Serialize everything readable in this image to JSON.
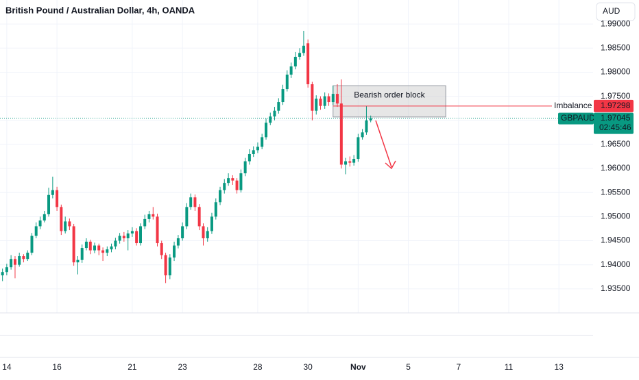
{
  "chart_data": {
    "type": "candlestick",
    "title": "British Pound / Australian Dollar, 4h, OANDA",
    "currency": "AUD",
    "symbol": "GBPAUD",
    "countdown": "02:45:46",
    "up_color": "#089981",
    "down_color": "#f23645",
    "grid": true,
    "xlim": [
      -0.27,
      23.36
    ],
    "xticks": [
      {
        "value": 0,
        "label": "14"
      },
      {
        "value": 2,
        "label": "16"
      },
      {
        "value": 5,
        "label": "21"
      },
      {
        "value": 7,
        "label": "23"
      },
      {
        "value": 10,
        "label": "28"
      },
      {
        "value": 12,
        "label": "30"
      },
      {
        "value": 14,
        "label": "Nov"
      },
      {
        "value": 16,
        "label": "5"
      },
      {
        "value": 18,
        "label": "7"
      },
      {
        "value": 20,
        "label": "11"
      },
      {
        "value": 22,
        "label": "13"
      }
    ],
    "ylim": [
      1.93,
      1.995
    ],
    "yticks": [
      {
        "value": 1.935,
        "label": "1.93500"
      },
      {
        "value": 1.94,
        "label": "1.94000"
      },
      {
        "value": 1.945,
        "label": "1.94500"
      },
      {
        "value": 1.95,
        "label": "1.95000"
      },
      {
        "value": 1.955,
        "label": "1.95500"
      },
      {
        "value": 1.96,
        "label": "1.96000"
      },
      {
        "value": 1.965,
        "label": "1.96500"
      },
      {
        "value": 1.97,
        "label": "1.97000"
      },
      {
        "value": 1.975,
        "label": "1.97500"
      },
      {
        "value": 1.98,
        "label": "1.98000"
      },
      {
        "value": 1.985,
        "label": "1.98500"
      },
      {
        "value": 1.99,
        "label": "1.99000"
      }
    ],
    "x": [
      -0.17,
      0,
      0.17,
      0.33,
      0.5,
      0.67,
      0.83,
      1,
      1.17,
      1.33,
      1.5,
      1.67,
      1.83,
      2,
      2.17,
      2.33,
      2.5,
      2.67,
      2.83,
      3,
      3.17,
      3.33,
      3.5,
      3.67,
      3.83,
      4,
      4.17,
      4.33,
      4.5,
      4.67,
      4.83,
      5,
      5.17,
      5.33,
      5.5,
      5.67,
      5.83,
      6,
      6.17,
      6.33,
      6.5,
      6.67,
      6.83,
      7,
      7.17,
      7.33,
      7.5,
      7.67,
      7.83,
      8,
      8.17,
      8.33,
      8.5,
      8.67,
      8.83,
      9,
      9.17,
      9.33,
      9.5,
      9.67,
      9.83,
      10,
      10.17,
      10.33,
      10.5,
      10.67,
      10.83,
      11,
      11.17,
      11.33,
      11.5,
      11.67,
      11.83,
      12,
      12.17,
      12.33,
      12.5,
      12.67,
      12.83,
      13,
      13.17,
      13.33,
      13.5,
      13.67,
      13.83,
      14,
      14.17,
      14.33,
      14.5
    ],
    "open": [
      1.9378,
      1.9385,
      1.9395,
      1.9412,
      1.94,
      1.9418,
      1.9412,
      1.9425,
      1.946,
      1.948,
      1.9492,
      1.9505,
      1.9545,
      1.9555,
      1.952,
      1.947,
      1.949,
      1.948,
      1.9405,
      1.941,
      1.9435,
      1.9448,
      1.943,
      1.944,
      1.943,
      1.9425,
      1.9432,
      1.9438,
      1.945,
      1.946,
      1.9455,
      1.9465,
      1.947,
      1.9445,
      1.948,
      1.9495,
      1.9505,
      1.95,
      1.9445,
      1.942,
      1.9378,
      1.9415,
      1.944,
      1.9455,
      1.948,
      1.952,
      1.954,
      1.952,
      1.948,
      1.9455,
      1.947,
      1.95,
      1.953,
      1.9555,
      1.957,
      1.958,
      1.9575,
      1.9555,
      1.959,
      1.9615,
      1.963,
      1.9638,
      1.9645,
      1.9665,
      1.9695,
      1.9708,
      1.972,
      1.9738,
      1.9765,
      1.9795,
      1.9812,
      1.9832,
      1.984,
      1.986,
      1.9775,
      1.972,
      1.9745,
      1.973,
      1.975,
      1.9738,
      1.9755,
      1.9735,
      1.9608,
      1.9615,
      1.9612,
      1.962,
      1.9665,
      1.9675,
      1.97
    ],
    "high": [
      1.9392,
      1.9402,
      1.942,
      1.9418,
      1.9425,
      1.9422,
      1.943,
      1.9466,
      1.9488,
      1.95,
      1.9512,
      1.956,
      1.9583,
      1.9562,
      1.9525,
      1.95,
      1.9496,
      1.9485,
      1.9418,
      1.9442,
      1.9455,
      1.9452,
      1.9446,
      1.9444,
      1.9436,
      1.9438,
      1.9444,
      1.9456,
      1.9466,
      1.9468,
      1.9472,
      1.9478,
      1.9476,
      1.9486,
      1.9504,
      1.9512,
      1.952,
      1.9506,
      1.945,
      1.9425,
      1.9422,
      1.9448,
      1.9462,
      1.9488,
      1.9528,
      1.9548,
      1.9546,
      1.9526,
      1.9486,
      1.9478,
      1.9508,
      1.9538,
      1.9562,
      1.9578,
      1.959,
      1.9586,
      1.958,
      1.9598,
      1.9622,
      1.964,
      1.9646,
      1.9654,
      1.9672,
      1.9704,
      1.9716,
      1.9728,
      1.9746,
      1.9774,
      1.9804,
      1.982,
      1.9842,
      1.985,
      1.9886,
      1.9868,
      1.978,
      1.9752,
      1.975,
      1.9758,
      1.9756,
      1.9772,
      1.9775,
      1.9785,
      1.9622,
      1.9625,
      1.9628,
      1.9672,
      1.9682,
      1.973,
      1.971
    ],
    "low": [
      1.9366,
      1.9378,
      1.939,
      1.9372,
      1.9396,
      1.9405,
      1.9408,
      1.942,
      1.9455,
      1.9474,
      1.9488,
      1.95,
      1.9538,
      1.9512,
      1.9462,
      1.9465,
      1.9472,
      1.9398,
      1.938,
      1.9404,
      1.943,
      1.9422,
      1.9424,
      1.942,
      1.9408,
      1.9418,
      1.9426,
      1.9432,
      1.9444,
      1.9448,
      1.943,
      1.9458,
      1.944,
      1.944,
      1.9474,
      1.9488,
      1.9494,
      1.9438,
      1.9412,
      1.9362,
      1.937,
      1.9408,
      1.9434,
      1.945,
      1.9474,
      1.9514,
      1.9512,
      1.9472,
      1.944,
      1.9448,
      1.9464,
      1.9494,
      1.9524,
      1.9548,
      1.9564,
      1.9566,
      1.9548,
      1.955,
      1.9584,
      1.9608,
      1.9624,
      1.9632,
      1.964,
      1.966,
      1.969,
      1.97,
      1.9714,
      1.9732,
      1.976,
      1.9788,
      1.9806,
      1.9826,
      1.9834,
      1.9768,
      1.97,
      1.9712,
      1.9722,
      1.9724,
      1.973,
      1.9732,
      1.9728,
      1.96,
      1.9588,
      1.9604,
      1.9606,
      1.9614,
      1.966,
      1.967,
      1.9696
    ],
    "close": [
      1.9385,
      1.9395,
      1.9412,
      1.94,
      1.9418,
      1.9412,
      1.9425,
      1.946,
      1.948,
      1.9492,
      1.9505,
      1.9545,
      1.9555,
      1.952,
      1.947,
      1.949,
      1.948,
      1.9405,
      1.941,
      1.9435,
      1.9448,
      1.943,
      1.944,
      1.943,
      1.9425,
      1.9432,
      1.9438,
      1.945,
      1.946,
      1.9455,
      1.9465,
      1.947,
      1.9445,
      1.948,
      1.9495,
      1.9505,
      1.95,
      1.9445,
      1.942,
      1.9378,
      1.9415,
      1.944,
      1.9455,
      1.948,
      1.952,
      1.954,
      1.952,
      1.948,
      1.9455,
      1.947,
      1.95,
      1.953,
      1.9555,
      1.957,
      1.958,
      1.9575,
      1.9555,
      1.959,
      1.9615,
      1.963,
      1.9638,
      1.9645,
      1.9665,
      1.9695,
      1.9708,
      1.972,
      1.9738,
      1.9765,
      1.9795,
      1.9812,
      1.9832,
      1.984,
      1.9855,
      1.9775,
      1.972,
      1.9745,
      1.973,
      1.975,
      1.9738,
      1.9755,
      1.9735,
      1.9608,
      1.9615,
      1.9612,
      1.962,
      1.9665,
      1.9675,
      1.97,
      1.97045
    ],
    "imbalance": {
      "label": "Imbalance",
      "value": 1.97298,
      "color": "#f23645"
    },
    "order_block": {
      "label": "Bearish order block",
      "top": 1.9772,
      "bottom": 1.9707,
      "x": [
        13,
        17.49
      ]
    }
  }
}
